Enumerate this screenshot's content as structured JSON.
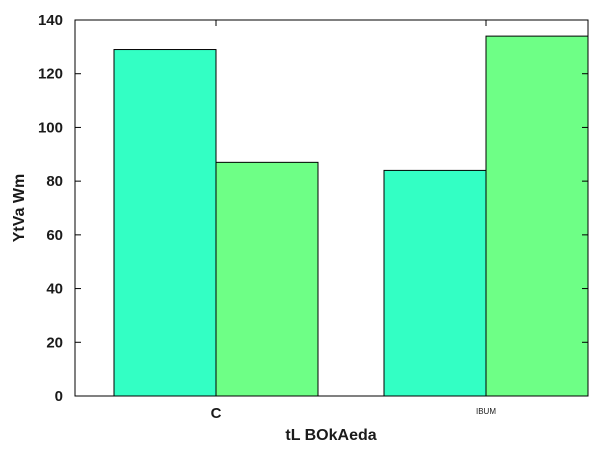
{
  "chart_data": {
    "type": "bar",
    "xlabel": "tL BOkAeda",
    "ylabel": "YtVa Wm",
    "categories": [
      "C",
      "IBUM"
    ],
    "series": [
      {
        "values": [
          129,
          84
        ],
        "color": "#33ffc4"
      },
      {
        "values": [
          87,
          134
        ],
        "color": "#6eff86"
      }
    ],
    "ylim": [
      0,
      140
    ],
    "yticks": [
      0,
      20,
      40,
      60,
      80,
      100,
      120,
      140
    ],
    "grid": false,
    "legend": "none"
  }
}
